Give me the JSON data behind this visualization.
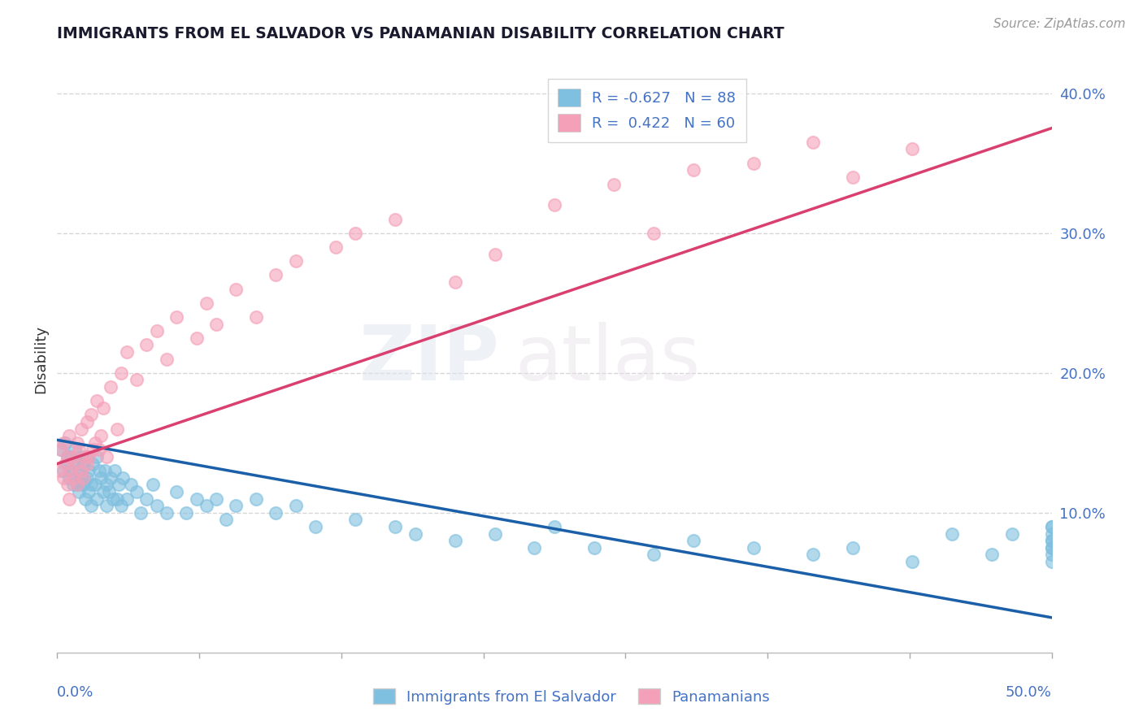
{
  "title": "IMMIGRANTS FROM EL SALVADOR VS PANAMANIAN DISABILITY CORRELATION CHART",
  "source": "Source: ZipAtlas.com",
  "ylabel": "Disability",
  "xlim": [
    0.0,
    50.0
  ],
  "ylim": [
    0.0,
    42.0
  ],
  "yticks": [
    10.0,
    20.0,
    30.0,
    40.0
  ],
  "ytick_labels": [
    "10.0%",
    "20.0%",
    "30.0%",
    "40.0%"
  ],
  "blue_color": "#7fbfdf",
  "pink_color": "#f4a0b8",
  "blue_line_color": "#1a5fa8",
  "pink_line_color": "#d94070",
  "legend_blue_r": "-0.627",
  "legend_blue_n": "88",
  "legend_pink_r": "0.422",
  "legend_pink_n": "60",
  "legend_label_blue": "Immigrants from El Salvador",
  "legend_label_pink": "Panamanians",
  "watermark_zip": "ZIP",
  "watermark_atlas": "atlas",
  "background_color": "#ffffff",
  "title_color": "#1a1a2e",
  "axis_color": "#4472c4",
  "grid_color": "#cccccc",
  "blue_line_x0": 0.0,
  "blue_line_y0": 15.2,
  "blue_line_x1": 50.0,
  "blue_line_y1": 2.5,
  "pink_line_x0": 0.0,
  "pink_line_y0": 13.5,
  "pink_line_x1": 50.0,
  "pink_line_y1": 37.5,
  "blue_scatter_x": [
    0.2,
    0.3,
    0.4,
    0.5,
    0.5,
    0.6,
    0.7,
    0.7,
    0.8,
    0.9,
    1.0,
    1.0,
    1.1,
    1.1,
    1.2,
    1.2,
    1.3,
    1.3,
    1.4,
    1.5,
    1.5,
    1.6,
    1.6,
    1.7,
    1.7,
    1.8,
    1.9,
    2.0,
    2.0,
    2.1,
    2.2,
    2.3,
    2.4,
    2.5,
    2.5,
    2.6,
    2.7,
    2.8,
    2.9,
    3.0,
    3.1,
    3.2,
    3.3,
    3.5,
    3.7,
    4.0,
    4.2,
    4.5,
    4.8,
    5.0,
    5.5,
    6.0,
    6.5,
    7.0,
    7.5,
    8.0,
    8.5,
    9.0,
    10.0,
    11.0,
    12.0,
    13.0,
    15.0,
    17.0,
    18.0,
    20.0,
    22.0,
    24.0,
    25.0,
    27.0,
    30.0,
    32.0,
    35.0,
    38.0,
    40.0,
    43.0,
    45.0,
    47.0,
    48.0,
    50.0,
    50.0,
    50.0,
    50.0,
    50.0,
    50.0,
    50.0,
    50.0,
    50.0
  ],
  "blue_scatter_y": [
    14.5,
    13.0,
    15.0,
    14.0,
    13.5,
    12.5,
    14.0,
    13.0,
    12.0,
    14.5,
    13.5,
    12.0,
    13.0,
    11.5,
    14.0,
    12.5,
    13.5,
    12.0,
    11.0,
    14.0,
    12.5,
    13.0,
    11.5,
    12.0,
    10.5,
    13.5,
    12.0,
    14.0,
    11.0,
    13.0,
    12.5,
    11.5,
    13.0,
    12.0,
    10.5,
    11.5,
    12.5,
    11.0,
    13.0,
    11.0,
    12.0,
    10.5,
    12.5,
    11.0,
    12.0,
    11.5,
    10.0,
    11.0,
    12.0,
    10.5,
    10.0,
    11.5,
    10.0,
    11.0,
    10.5,
    11.0,
    9.5,
    10.5,
    11.0,
    10.0,
    10.5,
    9.0,
    9.5,
    9.0,
    8.5,
    8.0,
    8.5,
    7.5,
    9.0,
    7.5,
    7.0,
    8.0,
    7.5,
    7.0,
    7.5,
    6.5,
    8.5,
    7.0,
    8.5,
    6.5,
    7.0,
    8.0,
    7.5,
    9.0,
    8.5,
    7.5,
    8.0,
    9.0
  ],
  "pink_scatter_x": [
    0.1,
    0.2,
    0.3,
    0.3,
    0.4,
    0.5,
    0.5,
    0.6,
    0.6,
    0.7,
    0.8,
    0.8,
    0.9,
    1.0,
    1.0,
    1.1,
    1.2,
    1.2,
    1.3,
    1.4,
    1.5,
    1.5,
    1.6,
    1.7,
    1.8,
    1.9,
    2.0,
    2.1,
    2.2,
    2.3,
    2.5,
    2.7,
    3.0,
    3.2,
    3.5,
    4.0,
    4.5,
    5.0,
    5.5,
    6.0,
    7.0,
    7.5,
    8.0,
    9.0,
    10.0,
    11.0,
    12.0,
    14.0,
    15.0,
    17.0,
    20.0,
    22.0,
    25.0,
    28.0,
    30.0,
    32.0,
    35.0,
    38.0,
    40.0,
    43.0
  ],
  "pink_scatter_y": [
    13.0,
    14.5,
    12.5,
    15.0,
    13.5,
    14.0,
    12.0,
    15.5,
    11.0,
    13.0,
    12.5,
    14.0,
    13.5,
    15.0,
    12.0,
    14.5,
    16.0,
    13.0,
    12.5,
    14.0,
    13.5,
    16.5,
    14.0,
    17.0,
    14.5,
    15.0,
    18.0,
    14.5,
    15.5,
    17.5,
    14.0,
    19.0,
    16.0,
    20.0,
    21.5,
    19.5,
    22.0,
    23.0,
    21.0,
    24.0,
    22.5,
    25.0,
    23.5,
    26.0,
    24.0,
    27.0,
    28.0,
    29.0,
    30.0,
    31.0,
    26.5,
    28.5,
    32.0,
    33.5,
    30.0,
    34.5,
    35.0,
    36.5,
    34.0,
    36.0
  ]
}
